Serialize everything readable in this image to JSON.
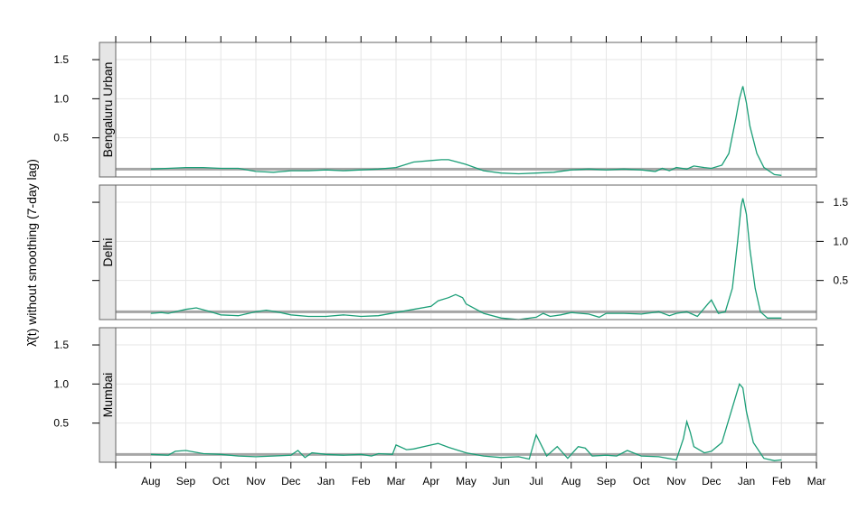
{
  "chart_data": {
    "type": "line",
    "ylabel": "λ̂(t) without smoothing (7-day lag)",
    "x_ticks": [
      "Aug",
      "Sep",
      "Oct",
      "Nov",
      "Dec",
      "Jan",
      "Feb",
      "Mar",
      "Apr",
      "May",
      "Jun",
      "Jul",
      "Aug",
      "Sep",
      "Oct",
      "Nov",
      "Dec",
      "Jan",
      "Feb",
      "Mar"
    ],
    "y_ticks": [
      "0.5",
      "1.0",
      "1.5"
    ],
    "y_tick_values": [
      0.5,
      1.0,
      1.5
    ],
    "ylim": [
      0,
      1.72
    ],
    "xlim": [
      -1.0,
      19.0
    ],
    "reference_line": 0.1,
    "grid": true,
    "colors": {
      "series": "#1b9e77",
      "reference": "#a6a6a6",
      "strip": "#e6e6e6",
      "grid": "#e6e6e6"
    },
    "panels": [
      {
        "name": "Bengaluru Urban",
        "y_axis_side": "left",
        "points": [
          [
            0,
            0.1
          ],
          [
            0.5,
            0.11
          ],
          [
            1,
            0.12
          ],
          [
            1.3,
            0.12
          ],
          [
            1.5,
            0.12
          ],
          [
            2,
            0.11
          ],
          [
            2.5,
            0.11
          ],
          [
            3,
            0.07
          ],
          [
            3.5,
            0.06
          ],
          [
            4,
            0.08
          ],
          [
            4.5,
            0.08
          ],
          [
            5,
            0.09
          ],
          [
            5.5,
            0.08
          ],
          [
            6,
            0.09
          ],
          [
            6.5,
            0.1
          ],
          [
            7,
            0.12
          ],
          [
            7.5,
            0.19
          ],
          [
            8,
            0.21
          ],
          [
            8.3,
            0.22
          ],
          [
            8.5,
            0.22
          ],
          [
            9,
            0.16
          ],
          [
            9.5,
            0.08
          ],
          [
            10,
            0.05
          ],
          [
            10.5,
            0.04
          ],
          [
            11,
            0.05
          ],
          [
            11.5,
            0.06
          ],
          [
            12,
            0.09
          ],
          [
            12.5,
            0.1
          ],
          [
            13,
            0.09
          ],
          [
            13.5,
            0.1
          ],
          [
            14,
            0.09
          ],
          [
            14.4,
            0.07
          ],
          [
            14.6,
            0.11
          ],
          [
            14.8,
            0.08
          ],
          [
            15,
            0.12
          ],
          [
            15.3,
            0.1
          ],
          [
            15.5,
            0.14
          ],
          [
            15.8,
            0.12
          ],
          [
            16,
            0.11
          ],
          [
            16.3,
            0.15
          ],
          [
            16.5,
            0.3
          ],
          [
            16.7,
            0.75
          ],
          [
            16.8,
            1.0
          ],
          [
            16.9,
            1.16
          ],
          [
            17.0,
            0.95
          ],
          [
            17.1,
            0.65
          ],
          [
            17.3,
            0.3
          ],
          [
            17.5,
            0.12
          ],
          [
            17.8,
            0.03
          ],
          [
            18.0,
            0.02
          ]
        ]
      },
      {
        "name": "Delhi",
        "y_axis_side": "right",
        "points": [
          [
            0,
            0.08
          ],
          [
            0.3,
            0.09
          ],
          [
            0.5,
            0.08
          ],
          [
            1,
            0.13
          ],
          [
            1.3,
            0.15
          ],
          [
            1.7,
            0.1
          ],
          [
            2,
            0.06
          ],
          [
            2.5,
            0.05
          ],
          [
            3,
            0.1
          ],
          [
            3.3,
            0.12
          ],
          [
            3.7,
            0.09
          ],
          [
            4,
            0.06
          ],
          [
            4.5,
            0.04
          ],
          [
            5,
            0.04
          ],
          [
            5.5,
            0.06
          ],
          [
            6,
            0.04
          ],
          [
            6.5,
            0.05
          ],
          [
            7,
            0.09
          ],
          [
            7.5,
            0.13
          ],
          [
            8,
            0.17
          ],
          [
            8.2,
            0.24
          ],
          [
            8.5,
            0.28
          ],
          [
            8.7,
            0.32
          ],
          [
            8.9,
            0.28
          ],
          [
            9,
            0.2
          ],
          [
            9.5,
            0.08
          ],
          [
            10,
            0.02
          ],
          [
            10.5,
            0.0
          ],
          [
            11,
            0.03
          ],
          [
            11.2,
            0.08
          ],
          [
            11.4,
            0.04
          ],
          [
            11.7,
            0.06
          ],
          [
            12,
            0.09
          ],
          [
            12.5,
            0.07
          ],
          [
            12.8,
            0.03
          ],
          [
            13,
            0.08
          ],
          [
            13.5,
            0.08
          ],
          [
            14,
            0.07
          ],
          [
            14.5,
            0.1
          ],
          [
            14.8,
            0.05
          ],
          [
            15,
            0.08
          ],
          [
            15.3,
            0.1
          ],
          [
            15.6,
            0.04
          ],
          [
            15.9,
            0.2
          ],
          [
            16.0,
            0.25
          ],
          [
            16.2,
            0.08
          ],
          [
            16.4,
            0.1
          ],
          [
            16.6,
            0.4
          ],
          [
            16.75,
            1.0
          ],
          [
            16.85,
            1.45
          ],
          [
            16.9,
            1.55
          ],
          [
            17.0,
            1.35
          ],
          [
            17.1,
            0.9
          ],
          [
            17.25,
            0.4
          ],
          [
            17.4,
            0.1
          ],
          [
            17.6,
            0.02
          ],
          [
            18.0,
            0.02
          ]
        ]
      },
      {
        "name": "Mumbai",
        "y_axis_side": "left",
        "points": [
          [
            0,
            0.1
          ],
          [
            0.5,
            0.09
          ],
          [
            0.7,
            0.14
          ],
          [
            1,
            0.15
          ],
          [
            1.5,
            0.11
          ],
          [
            2,
            0.1
          ],
          [
            2.5,
            0.08
          ],
          [
            3,
            0.07
          ],
          [
            3.5,
            0.08
          ],
          [
            4,
            0.09
          ],
          [
            4.2,
            0.15
          ],
          [
            4.4,
            0.06
          ],
          [
            4.6,
            0.12
          ],
          [
            5,
            0.1
          ],
          [
            5.5,
            0.09
          ],
          [
            6,
            0.1
          ],
          [
            6.3,
            0.08
          ],
          [
            6.5,
            0.11
          ],
          [
            6.9,
            0.1
          ],
          [
            7.0,
            0.22
          ],
          [
            7.3,
            0.16
          ],
          [
            7.5,
            0.17
          ],
          [
            8,
            0.22
          ],
          [
            8.2,
            0.24
          ],
          [
            8.5,
            0.19
          ],
          [
            9,
            0.12
          ],
          [
            9.5,
            0.08
          ],
          [
            10,
            0.06
          ],
          [
            10.5,
            0.07
          ],
          [
            10.8,
            0.04
          ],
          [
            11.0,
            0.35
          ],
          [
            11.2,
            0.17
          ],
          [
            11.3,
            0.08
          ],
          [
            11.6,
            0.2
          ],
          [
            11.9,
            0.05
          ],
          [
            12.2,
            0.2
          ],
          [
            12.4,
            0.18
          ],
          [
            12.6,
            0.08
          ],
          [
            13,
            0.09
          ],
          [
            13.3,
            0.08
          ],
          [
            13.6,
            0.15
          ],
          [
            14,
            0.08
          ],
          [
            14.5,
            0.07
          ],
          [
            15.0,
            0.03
          ],
          [
            15.2,
            0.3
          ],
          [
            15.3,
            0.52
          ],
          [
            15.4,
            0.38
          ],
          [
            15.5,
            0.2
          ],
          [
            15.8,
            0.12
          ],
          [
            16,
            0.14
          ],
          [
            16.3,
            0.25
          ],
          [
            16.6,
            0.7
          ],
          [
            16.8,
            1.0
          ],
          [
            16.9,
            0.95
          ],
          [
            17.0,
            0.65
          ],
          [
            17.2,
            0.25
          ],
          [
            17.5,
            0.05
          ],
          [
            17.8,
            0.02
          ],
          [
            18.0,
            0.03
          ]
        ]
      }
    ]
  }
}
